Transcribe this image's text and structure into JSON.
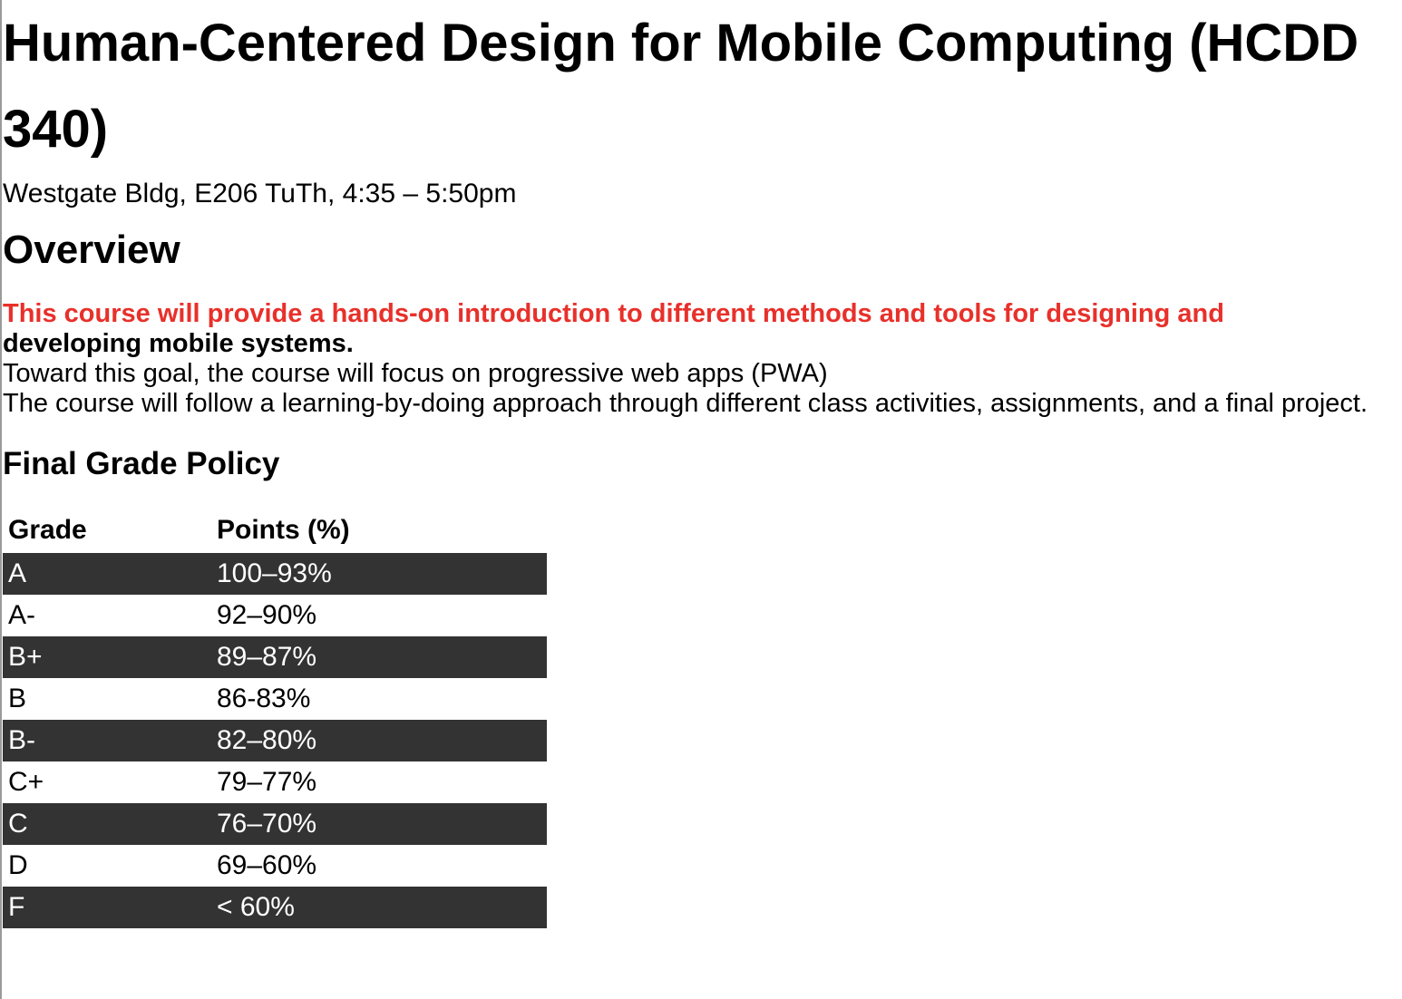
{
  "title": "Human-Centered Design for Mobile Computing (HCDD 340)",
  "location": "Westgate Bldg, E206 TuTh, 4:35 – 5:50pm",
  "overview": {
    "heading": "Overview",
    "highlight": "This course will provide a hands-on introduction to different methods and tools for designing and",
    "highlight_rest": "developing mobile systems.",
    "line2": "Toward this goal, the course will focus on progressive web apps (PWA)",
    "line3": "The course will follow a learning-by-doing approach through different class activities, assignments, and a final project."
  },
  "grade_policy": {
    "heading": "Final Grade Policy",
    "columns": [
      "Grade",
      "Points (%)"
    ],
    "rows": [
      [
        "A",
        "100–93%"
      ],
      [
        "A-",
        "92–90%"
      ],
      [
        "B+",
        "89–87%"
      ],
      [
        "B",
        "86-83%"
      ],
      [
        "B-",
        "82–80%"
      ],
      [
        "C+",
        "79–77%"
      ],
      [
        "C",
        "76–70%"
      ],
      [
        "D",
        "69–60%"
      ],
      [
        "F",
        "< 60%"
      ]
    ]
  },
  "colors": {
    "highlight": "#e8302a",
    "row_dark": "#333333"
  }
}
